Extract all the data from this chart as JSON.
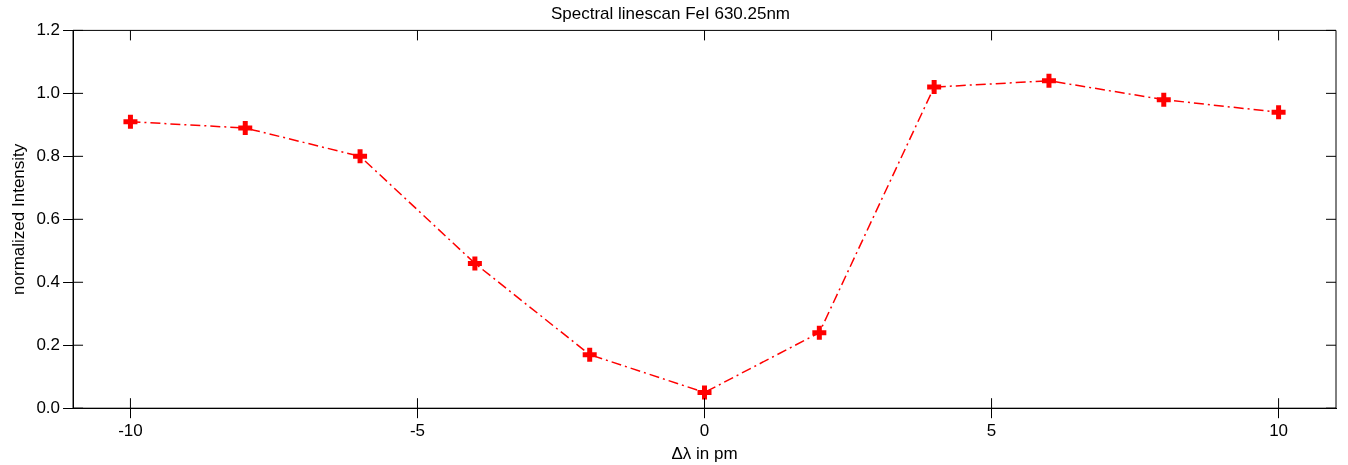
{
  "chart_data": {
    "type": "line",
    "title": "Spectral linescan FeI 630.25nm",
    "xlabel": "Δλ in pm",
    "ylabel": "normalized Intensity",
    "x": [
      -10,
      -8,
      -6,
      -4,
      -2,
      0,
      2,
      4,
      6,
      8,
      10
    ],
    "series": [
      {
        "color": "#ff0000",
        "values": [
          0.91,
          0.89,
          0.8,
          0.46,
          0.17,
          0.05,
          0.24,
          1.02,
          1.04,
          0.98,
          0.94
        ]
      }
    ],
    "xlim": [
      -11,
      11
    ],
    "xticks": [
      -10,
      -5,
      0,
      5,
      10
    ],
    "ylim": [
      0,
      1.2
    ],
    "yticks": [
      {
        "value": 0,
        "label": "0.0"
      },
      {
        "value": 0.2,
        "label": "0.2"
      },
      {
        "value": 0.4,
        "label": "0.4"
      },
      {
        "value": 0.6,
        "label": "0.6"
      },
      {
        "value": 0.8,
        "label": "0.8"
      },
      {
        "value": 1.0,
        "label": "1.0"
      },
      {
        "value": 1.2,
        "label": "1.2"
      }
    ],
    "grid": false,
    "legend": false,
    "marker": "cross",
    "line_style": "dashed"
  }
}
